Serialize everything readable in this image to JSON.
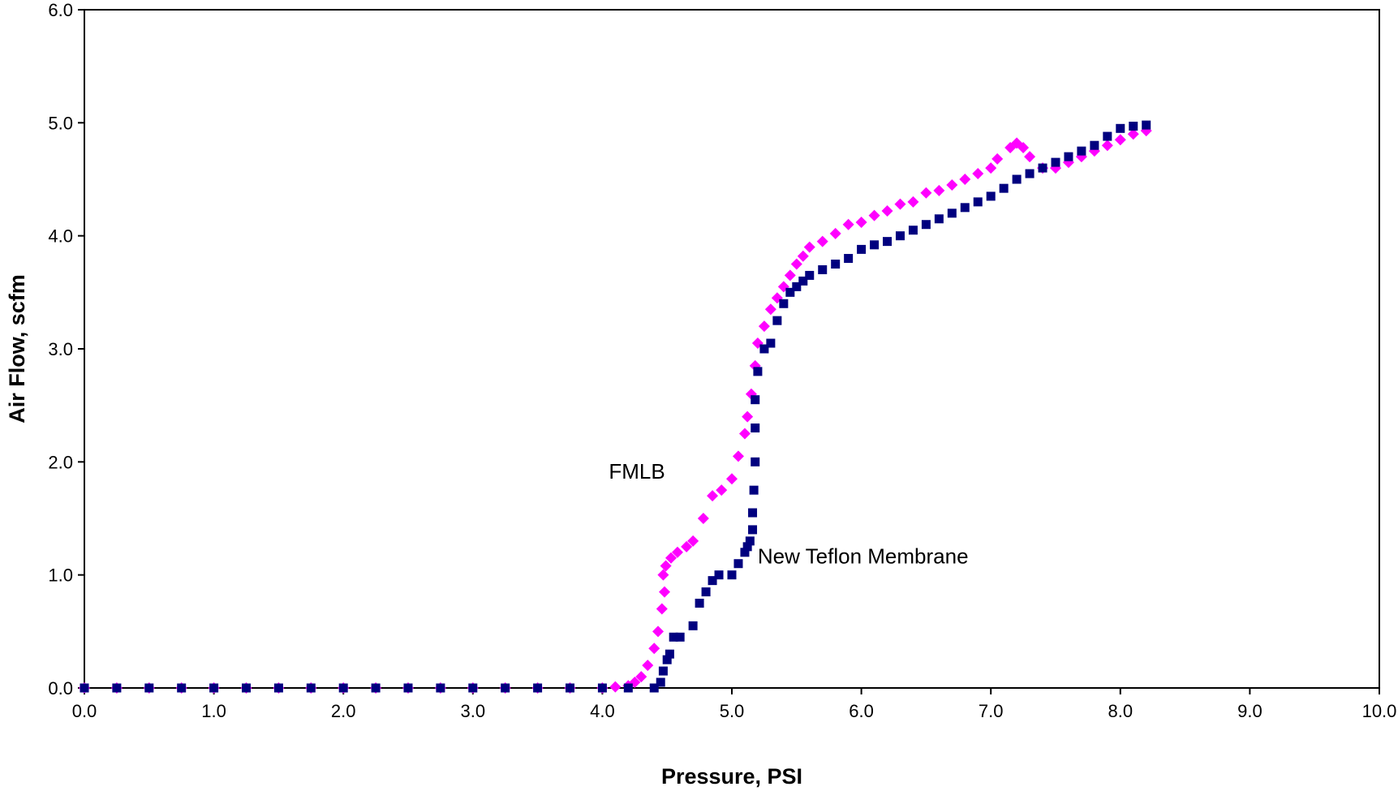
{
  "chart_data": {
    "type": "scatter",
    "title": "",
    "xlabel": "Pressure, PSI",
    "ylabel": "Air Flow, scfm",
    "xlim": [
      0,
      10
    ],
    "ylim": [
      0,
      6
    ],
    "x_ticks": [
      "0.0",
      "1.0",
      "2.0",
      "3.0",
      "4.0",
      "5.0",
      "6.0",
      "7.0",
      "8.0",
      "9.0",
      "10.0"
    ],
    "y_ticks": [
      "0.0",
      "1.0",
      "2.0",
      "3.0",
      "4.0",
      "5.0",
      "6.0"
    ],
    "grid": false,
    "legend": "none",
    "annotations": [
      {
        "text": "FMLB",
        "x": 4.05,
        "y": 1.85
      },
      {
        "text": "New Teflon Membrane",
        "x": 5.2,
        "y": 1.1
      }
    ],
    "series": [
      {
        "color": "#ff00ff",
        "marker": "diamond",
        "points": [
          [
            0.0,
            0.0
          ],
          [
            0.25,
            0.0
          ],
          [
            0.5,
            0.0
          ],
          [
            0.75,
            0.0
          ],
          [
            1.0,
            0.0
          ],
          [
            1.25,
            0.0
          ],
          [
            1.5,
            0.0
          ],
          [
            1.75,
            0.0
          ],
          [
            2.0,
            0.0
          ],
          [
            2.25,
            0.0
          ],
          [
            2.5,
            0.0
          ],
          [
            2.75,
            0.0
          ],
          [
            3.0,
            0.0
          ],
          [
            3.25,
            0.0
          ],
          [
            3.5,
            0.0
          ],
          [
            3.75,
            0.0
          ],
          [
            4.0,
            0.0
          ],
          [
            4.1,
            0.01
          ],
          [
            4.2,
            0.02
          ],
          [
            4.25,
            0.05
          ],
          [
            4.3,
            0.1
          ],
          [
            4.35,
            0.2
          ],
          [
            4.4,
            0.35
          ],
          [
            4.43,
            0.5
          ],
          [
            4.46,
            0.7
          ],
          [
            4.48,
            0.85
          ],
          [
            4.47,
            1.0
          ],
          [
            4.49,
            1.08
          ],
          [
            4.53,
            1.15
          ],
          [
            4.58,
            1.2
          ],
          [
            4.65,
            1.25
          ],
          [
            4.7,
            1.3
          ],
          [
            4.78,
            1.5
          ],
          [
            4.85,
            1.7
          ],
          [
            4.92,
            1.75
          ],
          [
            5.0,
            1.85
          ],
          [
            5.05,
            2.05
          ],
          [
            5.1,
            2.25
          ],
          [
            5.12,
            2.4
          ],
          [
            5.15,
            2.6
          ],
          [
            5.18,
            2.85
          ],
          [
            5.2,
            3.05
          ],
          [
            5.25,
            3.2
          ],
          [
            5.3,
            3.35
          ],
          [
            5.35,
            3.45
          ],
          [
            5.4,
            3.55
          ],
          [
            5.45,
            3.65
          ],
          [
            5.5,
            3.75
          ],
          [
            5.55,
            3.82
          ],
          [
            5.6,
            3.9
          ],
          [
            5.7,
            3.95
          ],
          [
            5.8,
            4.02
          ],
          [
            5.9,
            4.1
          ],
          [
            6.0,
            4.12
          ],
          [
            6.1,
            4.18
          ],
          [
            6.2,
            4.22
          ],
          [
            6.3,
            4.28
          ],
          [
            6.4,
            4.3
          ],
          [
            6.5,
            4.38
          ],
          [
            6.6,
            4.4
          ],
          [
            6.7,
            4.45
          ],
          [
            6.8,
            4.5
          ],
          [
            6.9,
            4.55
          ],
          [
            7.0,
            4.6
          ],
          [
            7.05,
            4.68
          ],
          [
            7.15,
            4.78
          ],
          [
            7.2,
            4.82
          ],
          [
            7.25,
            4.78
          ],
          [
            7.3,
            4.7
          ],
          [
            7.4,
            4.6
          ],
          [
            7.5,
            4.6
          ],
          [
            7.6,
            4.65
          ],
          [
            7.7,
            4.7
          ],
          [
            7.8,
            4.75
          ],
          [
            7.9,
            4.8
          ],
          [
            8.0,
            4.85
          ],
          [
            8.1,
            4.9
          ],
          [
            8.2,
            4.93
          ]
        ]
      },
      {
        "color": "#00007f",
        "marker": "square",
        "points": [
          [
            0.0,
            0.0
          ],
          [
            0.25,
            0.0
          ],
          [
            0.5,
            0.0
          ],
          [
            0.75,
            0.0
          ],
          [
            1.0,
            0.0
          ],
          [
            1.25,
            0.0
          ],
          [
            1.5,
            0.0
          ],
          [
            1.75,
            0.0
          ],
          [
            2.0,
            0.0
          ],
          [
            2.25,
            0.0
          ],
          [
            2.5,
            0.0
          ],
          [
            2.75,
            0.0
          ],
          [
            3.0,
            0.0
          ],
          [
            3.25,
            0.0
          ],
          [
            3.5,
            0.0
          ],
          [
            3.75,
            0.0
          ],
          [
            4.0,
            0.0
          ],
          [
            4.2,
            0.0
          ],
          [
            4.4,
            0.0
          ],
          [
            4.45,
            0.05
          ],
          [
            4.47,
            0.15
          ],
          [
            4.5,
            0.25
          ],
          [
            4.52,
            0.3
          ],
          [
            4.55,
            0.45
          ],
          [
            4.6,
            0.45
          ],
          [
            4.7,
            0.55
          ],
          [
            4.75,
            0.75
          ],
          [
            4.8,
            0.85
          ],
          [
            4.85,
            0.95
          ],
          [
            4.9,
            1.0
          ],
          [
            5.0,
            1.0
          ],
          [
            5.05,
            1.1
          ],
          [
            5.1,
            1.2
          ],
          [
            5.12,
            1.25
          ],
          [
            5.14,
            1.3
          ],
          [
            5.16,
            1.4
          ],
          [
            5.16,
            1.55
          ],
          [
            5.17,
            1.75
          ],
          [
            5.18,
            2.0
          ],
          [
            5.18,
            2.3
          ],
          [
            5.18,
            2.55
          ],
          [
            5.2,
            2.8
          ],
          [
            5.25,
            3.0
          ],
          [
            5.3,
            3.05
          ],
          [
            5.35,
            3.25
          ],
          [
            5.4,
            3.4
          ],
          [
            5.45,
            3.5
          ],
          [
            5.5,
            3.55
          ],
          [
            5.55,
            3.6
          ],
          [
            5.6,
            3.65
          ],
          [
            5.7,
            3.7
          ],
          [
            5.8,
            3.75
          ],
          [
            5.9,
            3.8
          ],
          [
            6.0,
            3.88
          ],
          [
            6.1,
            3.92
          ],
          [
            6.2,
            3.95
          ],
          [
            6.3,
            4.0
          ],
          [
            6.4,
            4.05
          ],
          [
            6.5,
            4.1
          ],
          [
            6.6,
            4.15
          ],
          [
            6.7,
            4.2
          ],
          [
            6.8,
            4.25
          ],
          [
            6.9,
            4.3
          ],
          [
            7.0,
            4.35
          ],
          [
            7.1,
            4.42
          ],
          [
            7.2,
            4.5
          ],
          [
            7.3,
            4.55
          ],
          [
            7.4,
            4.6
          ],
          [
            7.5,
            4.65
          ],
          [
            7.6,
            4.7
          ],
          [
            7.7,
            4.75
          ],
          [
            7.8,
            4.8
          ],
          [
            7.9,
            4.88
          ],
          [
            8.0,
            4.95
          ],
          [
            8.1,
            4.97
          ],
          [
            8.2,
            4.98
          ]
        ]
      }
    ]
  }
}
